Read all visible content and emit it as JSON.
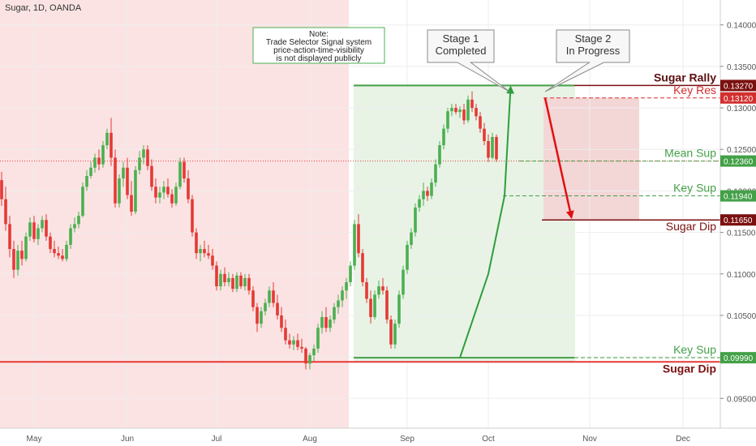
{
  "window": {
    "title": "Sugar, 1D, OANDA"
  },
  "chart_data": {
    "type": "candlestick",
    "symbol": "Sugar, 1D, OANDA",
    "y_axis": {
      "range": [
        0.092,
        0.143
      ],
      "ticks": [
        "0.14000",
        "0.13500",
        "0.13000",
        "0.12500",
        "0.12000",
        "0.11500",
        "0.11000",
        "0.10500",
        "0.10000",
        "0.09500"
      ],
      "tick_values": [
        0.14,
        0.135,
        0.13,
        0.125,
        0.12,
        0.115,
        0.11,
        0.105,
        0.1,
        0.095
      ]
    },
    "x_axis": {
      "labels": [
        {
          "label": "May",
          "index": 8
        },
        {
          "label": "Jun",
          "index": 31
        },
        {
          "label": "Jul",
          "index": 53
        },
        {
          "label": "Aug",
          "index": 76
        },
        {
          "label": "Sep",
          "index": 100
        },
        {
          "label": "Oct",
          "index": 120
        },
        {
          "label": "Nov",
          "index": 145
        },
        {
          "label": "Dec",
          "index": 168
        }
      ]
    },
    "candles": [
      [
        0.1213,
        0.1223,
        0.1182,
        0.119
      ],
      [
        0.119,
        0.1205,
        0.1152,
        0.116
      ],
      [
        0.116,
        0.117,
        0.112,
        0.113
      ],
      [
        0.113,
        0.114,
        0.1095,
        0.1105
      ],
      [
        0.1105,
        0.1135,
        0.1098,
        0.1128
      ],
      [
        0.1128,
        0.114,
        0.111,
        0.1118
      ],
      [
        0.1118,
        0.115,
        0.1115,
        0.1145
      ],
      [
        0.1145,
        0.1168,
        0.114,
        0.1162
      ],
      [
        0.1162,
        0.117,
        0.1138,
        0.1142
      ],
      [
        0.1142,
        0.116,
        0.1135,
        0.1155
      ],
      [
        0.1155,
        0.117,
        0.115,
        0.1165
      ],
      [
        0.1165,
        0.1172,
        0.114,
        0.1145
      ],
      [
        0.1145,
        0.115,
        0.1125,
        0.113
      ],
      [
        0.113,
        0.114,
        0.112,
        0.1125
      ],
      [
        0.1125,
        0.1133,
        0.1118,
        0.1122
      ],
      [
        0.1122,
        0.113,
        0.1115,
        0.1118
      ],
      [
        0.1118,
        0.114,
        0.1115,
        0.1135
      ],
      [
        0.1135,
        0.116,
        0.113,
        0.1155
      ],
      [
        0.1155,
        0.1168,
        0.115,
        0.116
      ],
      [
        0.116,
        0.1175,
        0.1155,
        0.117
      ],
      [
        0.117,
        0.121,
        0.1168,
        0.1205
      ],
      [
        0.1205,
        0.1225,
        0.12,
        0.1218
      ],
      [
        0.1218,
        0.1235,
        0.1215,
        0.1228
      ],
      [
        0.1228,
        0.1245,
        0.1222,
        0.124
      ],
      [
        0.124,
        0.125,
        0.1225,
        0.1232
      ],
      [
        0.1232,
        0.126,
        0.1228,
        0.1255
      ],
      [
        0.1255,
        0.1275,
        0.125,
        0.127
      ],
      [
        0.127,
        0.1288,
        0.123,
        0.124
      ],
      [
        0.124,
        0.125,
        0.118,
        0.1185
      ],
      [
        0.1185,
        0.122,
        0.118,
        0.1215
      ],
      [
        0.1215,
        0.1235,
        0.1205,
        0.1228
      ],
      [
        0.1228,
        0.124,
        0.119,
        0.1195
      ],
      [
        0.1195,
        0.1212,
        0.117,
        0.1175
      ],
      [
        0.1175,
        0.123,
        0.1172,
        0.1225
      ],
      [
        0.1225,
        0.1248,
        0.122,
        0.124
      ],
      [
        0.124,
        0.1255,
        0.1232,
        0.125
      ],
      [
        0.125,
        0.1255,
        0.1225,
        0.123
      ],
      [
        0.123,
        0.1238,
        0.12,
        0.1205
      ],
      [
        0.1205,
        0.1215,
        0.1185,
        0.1192
      ],
      [
        0.1192,
        0.1205,
        0.1185,
        0.1198
      ],
      [
        0.1198,
        0.1212,
        0.119,
        0.1205
      ],
      [
        0.1205,
        0.1215,
        0.1192,
        0.1196
      ],
      [
        0.1196,
        0.1202,
        0.118,
        0.1185
      ],
      [
        0.1185,
        0.121,
        0.1182,
        0.1205
      ],
      [
        0.1205,
        0.124,
        0.1202,
        0.1235
      ],
      [
        0.1235,
        0.124,
        0.121,
        0.1215
      ],
      [
        0.1215,
        0.1225,
        0.1185,
        0.119
      ],
      [
        0.119,
        0.1195,
        0.1145,
        0.115
      ],
      [
        0.115,
        0.1155,
        0.1118,
        0.1125
      ],
      [
        0.1125,
        0.1135,
        0.1115,
        0.113
      ],
      [
        0.113,
        0.114,
        0.112,
        0.1125
      ],
      [
        0.1125,
        0.1135,
        0.1118,
        0.1122
      ],
      [
        0.1122,
        0.113,
        0.1105,
        0.111
      ],
      [
        0.111,
        0.1115,
        0.108,
        0.1085
      ],
      [
        0.1085,
        0.1105,
        0.108,
        0.11
      ],
      [
        0.11,
        0.1108,
        0.1085,
        0.109
      ],
      [
        0.109,
        0.1102,
        0.1085,
        0.1095
      ],
      [
        0.1095,
        0.11,
        0.1078,
        0.1082
      ],
      [
        0.1082,
        0.1102,
        0.1078,
        0.1098
      ],
      [
        0.1098,
        0.1102,
        0.1082,
        0.1085
      ],
      [
        0.1085,
        0.11,
        0.108,
        0.1095
      ],
      [
        0.1095,
        0.11,
        0.1075,
        0.108
      ],
      [
        0.108,
        0.1085,
        0.1055,
        0.106
      ],
      [
        0.106,
        0.1065,
        0.103,
        0.104
      ],
      [
        0.104,
        0.106,
        0.1035,
        0.1055
      ],
      [
        0.1055,
        0.107,
        0.105,
        0.1065
      ],
      [
        0.1065,
        0.1085,
        0.106,
        0.108
      ],
      [
        0.108,
        0.109,
        0.106,
        0.1065
      ],
      [
        0.1065,
        0.1075,
        0.1045,
        0.105
      ],
      [
        0.105,
        0.106,
        0.103,
        0.1035
      ],
      [
        0.1035,
        0.1045,
        0.1015,
        0.102
      ],
      [
        0.102,
        0.1028,
        0.101,
        0.1015
      ],
      [
        0.1015,
        0.1025,
        0.1008,
        0.102
      ],
      [
        0.102,
        0.1028,
        0.1008,
        0.1012
      ],
      [
        0.1012,
        0.1022,
        0.1005,
        0.101
      ],
      [
        0.101,
        0.1012,
        0.0985,
        0.0992
      ],
      [
        0.0992,
        0.1005,
        0.0985,
        0.1002
      ],
      [
        0.1002,
        0.1015,
        0.0995,
        0.101
      ],
      [
        0.101,
        0.104,
        0.1005,
        0.1035
      ],
      [
        0.1035,
        0.1055,
        0.1028,
        0.1048
      ],
      [
        0.1048,
        0.106,
        0.103,
        0.1035
      ],
      [
        0.1035,
        0.105,
        0.103,
        0.1045
      ],
      [
        0.1045,
        0.1065,
        0.104,
        0.106
      ],
      [
        0.106,
        0.1075,
        0.1052,
        0.1068
      ],
      [
        0.1068,
        0.1085,
        0.106,
        0.108
      ],
      [
        0.108,
        0.1095,
        0.107,
        0.109
      ],
      [
        0.109,
        0.1115,
        0.1085,
        0.111
      ],
      [
        0.111,
        0.1165,
        0.1105,
        0.116
      ],
      [
        0.116,
        0.1172,
        0.112,
        0.1125
      ],
      [
        0.1125,
        0.113,
        0.1085,
        0.109
      ],
      [
        0.109,
        0.1095,
        0.1065,
        0.107
      ],
      [
        0.107,
        0.108,
        0.104,
        0.1048
      ],
      [
        0.1048,
        0.108,
        0.1045,
        0.1075
      ],
      [
        0.1075,
        0.1092,
        0.107,
        0.1085
      ],
      [
        0.1085,
        0.1095,
        0.1075,
        0.108
      ],
      [
        0.108,
        0.1085,
        0.104,
        0.1045
      ],
      [
        0.1045,
        0.105,
        0.101,
        0.1015
      ],
      [
        0.1015,
        0.1045,
        0.101,
        0.104
      ],
      [
        0.104,
        0.108,
        0.1035,
        0.1075
      ],
      [
        0.1075,
        0.111,
        0.107,
        0.1105
      ],
      [
        0.1105,
        0.114,
        0.11,
        0.1135
      ],
      [
        0.1135,
        0.1155,
        0.113,
        0.115
      ],
      [
        0.115,
        0.1185,
        0.1145,
        0.118
      ],
      [
        0.118,
        0.1195,
        0.1175,
        0.119
      ],
      [
        0.119,
        0.121,
        0.1182,
        0.12
      ],
      [
        0.12,
        0.1205,
        0.1188,
        0.1194
      ],
      [
        0.1194,
        0.1215,
        0.119,
        0.121
      ],
      [
        0.121,
        0.1238,
        0.1205,
        0.1232
      ],
      [
        0.1232,
        0.126,
        0.1228,
        0.1255
      ],
      [
        0.1255,
        0.128,
        0.125,
        0.1275
      ],
      [
        0.1275,
        0.13,
        0.127,
        0.1296
      ],
      [
        0.1296,
        0.1305,
        0.129,
        0.13
      ],
      [
        0.13,
        0.1305,
        0.1292,
        0.1295
      ],
      [
        0.1295,
        0.1302,
        0.1288,
        0.1298
      ],
      [
        0.1298,
        0.1305,
        0.128,
        0.1285
      ],
      [
        0.1285,
        0.1315,
        0.1282,
        0.131
      ],
      [
        0.131,
        0.132,
        0.1295,
        0.13
      ],
      [
        0.13,
        0.1305,
        0.1285,
        0.129
      ],
      [
        0.129,
        0.1295,
        0.127,
        0.1275
      ],
      [
        0.1275,
        0.1282,
        0.1255,
        0.126
      ],
      [
        0.126,
        0.1268,
        0.1235,
        0.124
      ],
      [
        0.124,
        0.127,
        0.1238,
        0.1265
      ],
      [
        0.1265,
        0.1268,
        0.1235,
        0.1238
      ]
    ],
    "levels": [
      {
        "name": "Sugar Rally",
        "value": 0.1327,
        "label": "0.13270",
        "color": "#7b1010"
      },
      {
        "name": "Key Res",
        "value": 0.1312,
        "label": "0.13120",
        "color": "#d32f2f"
      },
      {
        "name": "Mean Sup",
        "value": 0.1236,
        "label": "0.12360",
        "color": "#43a047"
      },
      {
        "name": "Key Sup",
        "value": 0.1194,
        "label": "0.11940",
        "color": "#43a047"
      },
      {
        "name": "Sugar Dip",
        "value": 0.1165,
        "label": "0.11650",
        "color": "#7b1010"
      },
      {
        "name": "Key Sup",
        "value": 0.0999,
        "label": "0.09990",
        "color": "#43a047"
      },
      {
        "name": "Sugar Dip",
        "value": 0.0994,
        "label": "",
        "color": "#7b1010"
      }
    ],
    "annotations": {
      "note": [
        "Note:",
        "Trade Selector Signal system",
        "price-action-time-visibility",
        "is not displayed publicly"
      ],
      "stage1": [
        "Stage 1",
        "Completed"
      ],
      "stage2": [
        "Stage 2",
        "In Progress"
      ]
    },
    "colors": {
      "up": "#4caf50",
      "down": "#e53935",
      "bg_red": "#fbe3e3",
      "bg_green": "#e8f3e6"
    }
  }
}
